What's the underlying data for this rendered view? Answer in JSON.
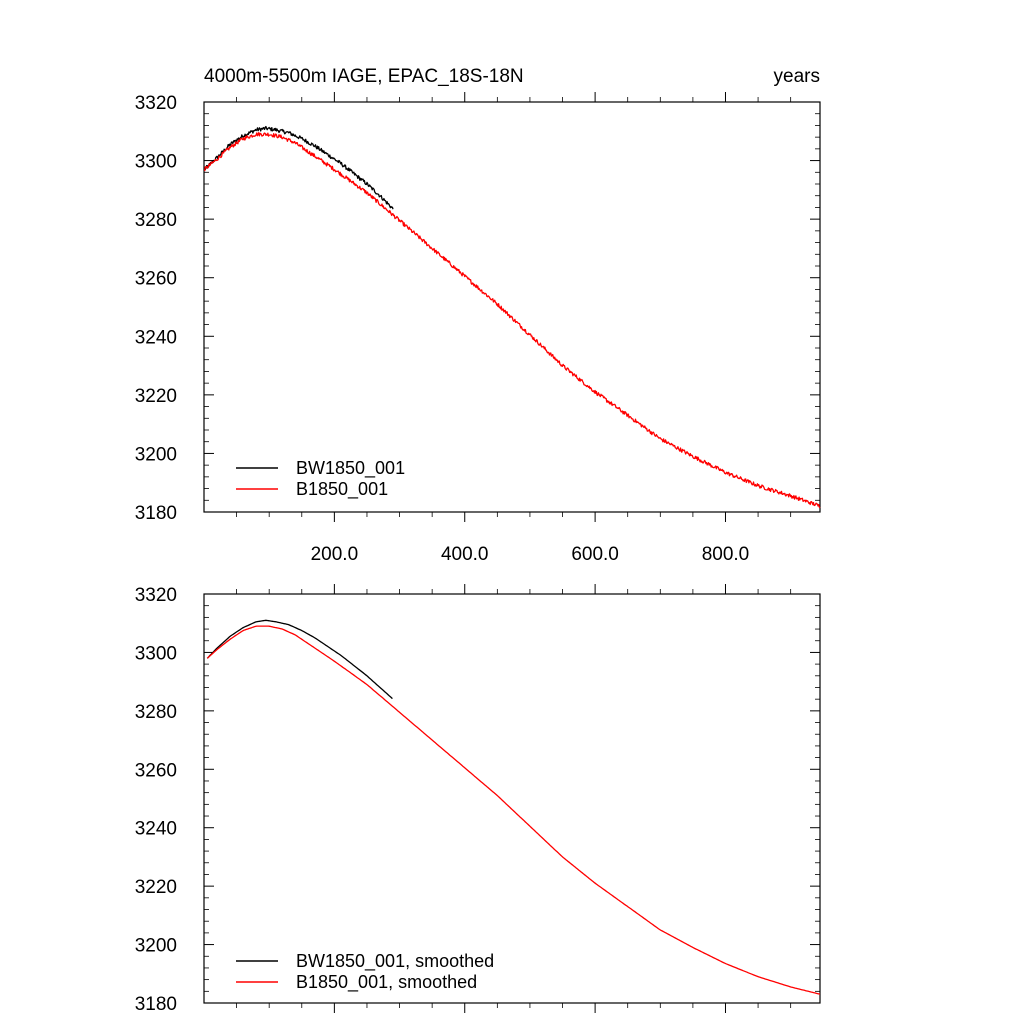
{
  "chart_data": [
    {
      "type": "line",
      "title": "4000m-5500m IAGE, EPAC_18S-18N",
      "units": "years",
      "xlim": [
        0,
        945
      ],
      "ylim": [
        3180,
        3320
      ],
      "xticks": [
        200,
        400,
        600,
        800
      ],
      "xtick_labels": [
        "200.0",
        "400.0",
        "600.0",
        "800.0"
      ],
      "yticks": [
        3180,
        3200,
        3220,
        3240,
        3260,
        3280,
        3300,
        3320
      ],
      "ytick_labels": [
        "3180",
        "3200",
        "3220",
        "3240",
        "3260",
        "3280",
        "3300",
        "3320"
      ],
      "legend_position": "bottom-left",
      "series": [
        {
          "name": "BW1850_001",
          "color": "#000000",
          "noisy": true,
          "x": [
            1,
            20,
            40,
            60,
            80,
            95,
            110,
            130,
            150,
            170,
            190,
            210,
            230,
            250,
            270,
            290
          ],
          "y": [
            3297,
            3301,
            3305.5,
            3308.5,
            3310.5,
            3311,
            3310.5,
            3309.5,
            3307.5,
            3305,
            3302,
            3299,
            3295.5,
            3292,
            3288,
            3283.5
          ]
        },
        {
          "name": "B1850_001",
          "color": "#ff0000",
          "noisy": true,
          "x": [
            1,
            20,
            40,
            60,
            80,
            100,
            120,
            140,
            160,
            180,
            200,
            250,
            300,
            350,
            400,
            450,
            500,
            550,
            600,
            650,
            700,
            750,
            800,
            850,
            900,
            945
          ],
          "y": [
            3297,
            3300.5,
            3304.5,
            3307.5,
            3309,
            3309,
            3308,
            3306,
            3303,
            3300,
            3297,
            3289,
            3279.5,
            3270,
            3260.5,
            3251,
            3240.5,
            3230,
            3221,
            3213,
            3205,
            3199,
            3193.5,
            3189,
            3185.5,
            3182
          ]
        }
      ]
    },
    {
      "type": "line",
      "xlim": [
        0,
        945
      ],
      "ylim": [
        3180,
        3320
      ],
      "xticks": [
        200,
        400,
        600,
        800
      ],
      "yticks": [
        3180,
        3200,
        3220,
        3240,
        3260,
        3280,
        3300,
        3320
      ],
      "ytick_labels": [
        "3180",
        "3200",
        "3220",
        "3240",
        "3260",
        "3280",
        "3300",
        "3320"
      ],
      "legend_position": "bottom-left",
      "series": [
        {
          "name": "BW1850_001, smoothed",
          "color": "#000000",
          "noisy": false,
          "x": [
            5,
            20,
            40,
            60,
            80,
            95,
            110,
            130,
            150,
            170,
            190,
            210,
            230,
            250,
            270,
            290
          ],
          "y": [
            3298,
            3301.5,
            3305.5,
            3308.5,
            3310.5,
            3311,
            3310.5,
            3309.5,
            3307.5,
            3305,
            3302,
            3299,
            3295.5,
            3292,
            3288,
            3284
          ]
        },
        {
          "name": "B1850_001, smoothed",
          "color": "#ff0000",
          "noisy": false,
          "x": [
            5,
            20,
            40,
            60,
            80,
            100,
            120,
            140,
            160,
            180,
            200,
            250,
            300,
            350,
            400,
            450,
            500,
            550,
            600,
            650,
            700,
            750,
            800,
            850,
            900,
            945
          ],
          "y": [
            3298,
            3301,
            3304.5,
            3307.5,
            3309,
            3309,
            3308,
            3306,
            3303,
            3300,
            3297,
            3289,
            3279.5,
            3270,
            3260.5,
            3251,
            3240.5,
            3230,
            3221,
            3213,
            3205,
            3199,
            3193.5,
            3189,
            3185.5,
            3183
          ]
        }
      ]
    }
  ]
}
